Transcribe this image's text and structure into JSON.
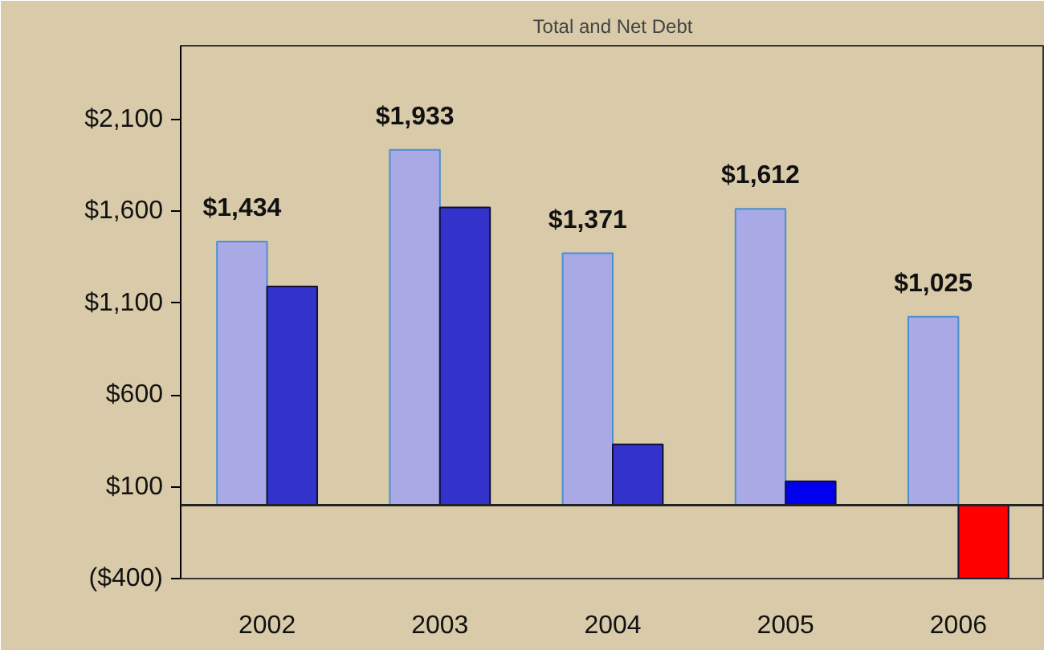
{
  "chart_data": {
    "type": "bar",
    "title": "Total and Net Debt",
    "categories": [
      "2002",
      "2003",
      "2004",
      "2005",
      "2006"
    ],
    "series": [
      {
        "color": "#a9a9e6",
        "values": [
          1434,
          1933,
          1371,
          1612,
          1025
        ],
        "value_labels": [
          "$1,434",
          "$1,933",
          "$1,371",
          "$1,612",
          "$1,025"
        ]
      },
      {
        "colors": [
          "#3333cc",
          "#3333cc",
          "#3333cc",
          "#0000ee",
          "#ff0000"
        ],
        "values": [
          1190,
          1620,
          330,
          130,
          -400
        ]
      }
    ],
    "ylim": [
      -400,
      2500
    ],
    "yticks": [
      {
        "value": -400,
        "label": "($400)"
      },
      {
        "value": 100,
        "label": "$100"
      },
      {
        "value": 600,
        "label": "$600"
      },
      {
        "value": 1100,
        "label": "$1,100"
      },
      {
        "value": 1600,
        "label": "$1,600"
      },
      {
        "value": 2100,
        "label": "$2,100"
      }
    ],
    "grid": false
  }
}
